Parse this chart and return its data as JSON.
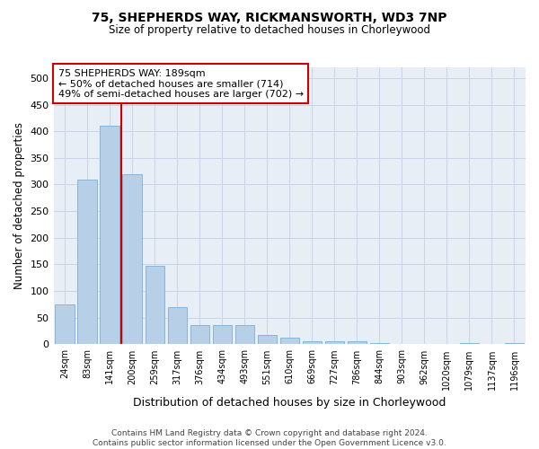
{
  "title1": "75, SHEPHERDS WAY, RICKMANSWORTH, WD3 7NP",
  "title2": "Size of property relative to detached houses in Chorleywood",
  "xlabel": "Distribution of detached houses by size in Chorleywood",
  "ylabel": "Number of detached properties",
  "categories": [
    "24sqm",
    "83sqm",
    "141sqm",
    "200sqm",
    "259sqm",
    "317sqm",
    "376sqm",
    "434sqm",
    "493sqm",
    "551sqm",
    "610sqm",
    "669sqm",
    "727sqm",
    "786sqm",
    "844sqm",
    "903sqm",
    "962sqm",
    "1020sqm",
    "1079sqm",
    "1137sqm",
    "1196sqm"
  ],
  "values": [
    75,
    310,
    410,
    320,
    148,
    70,
    36,
    36,
    36,
    18,
    12,
    5,
    6,
    6,
    3,
    0,
    0,
    0,
    3,
    0,
    3
  ],
  "bar_color": "#b8cfe8",
  "bar_edge_color": "#7aafd4",
  "marker_line_color": "#cc0000",
  "annotation_line1": "75 SHEPHERDS WAY: 189sqm",
  "annotation_line2": "← 50% of detached houses are smaller (714)",
  "annotation_line3": "49% of semi-detached houses are larger (702) →",
  "annotation_box_edge": "#cc0000",
  "ylim": [
    0,
    520
  ],
  "yticks": [
    0,
    50,
    100,
    150,
    200,
    250,
    300,
    350,
    400,
    450,
    500
  ],
  "footer1": "Contains HM Land Registry data © Crown copyright and database right 2024.",
  "footer2": "Contains public sector information licensed under the Open Government Licence v3.0.",
  "grid_color": "#c8d4e8",
  "bg_color": "#e8eef6"
}
